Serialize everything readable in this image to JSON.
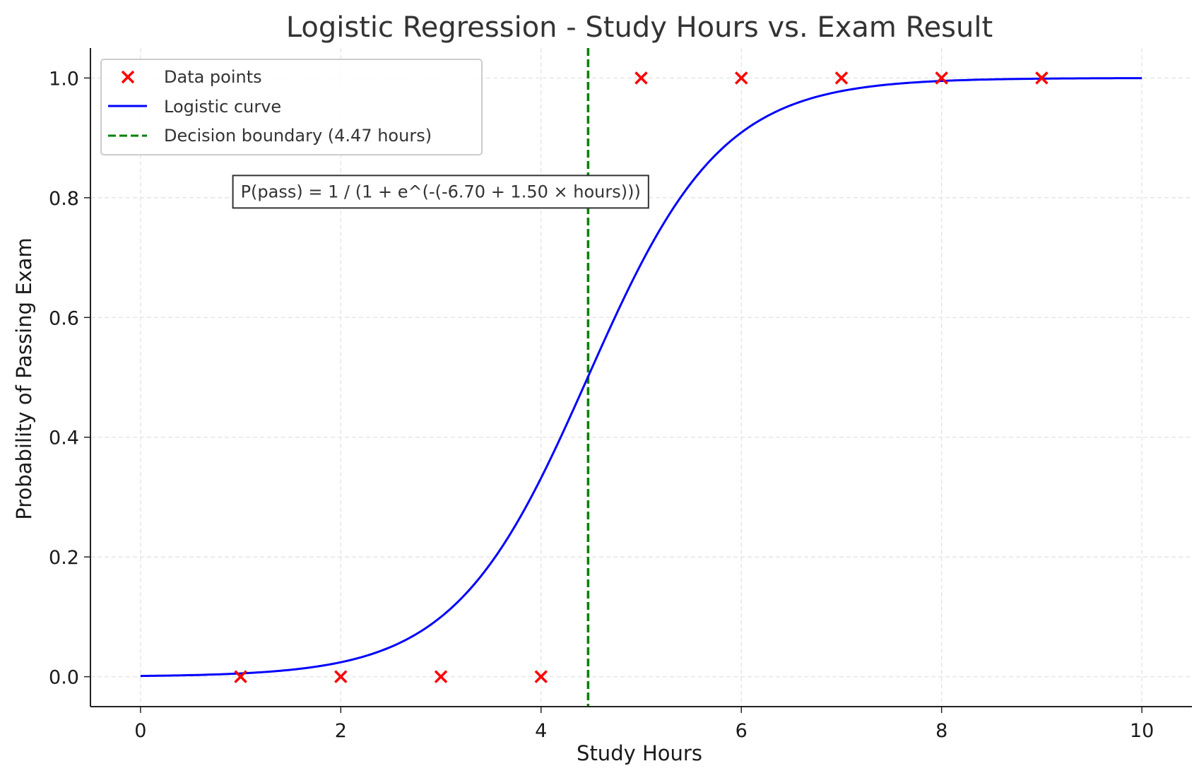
{
  "chart_data": {
    "type": "scatter",
    "title": "Logistic Regression - Study Hours vs. Exam Result",
    "xlabel": "Study Hours",
    "ylabel": "Probability of Passing Exam",
    "xlim": [
      -0.5,
      10.5
    ],
    "ylim": [
      -0.05,
      1.05
    ],
    "xticks": [
      0,
      2,
      4,
      6,
      8,
      10
    ],
    "xtick_labels": [
      "0",
      "2",
      "4",
      "6",
      "8",
      "10"
    ],
    "yticks": [
      0.0,
      0.2,
      0.4,
      0.6,
      0.8,
      1.0
    ],
    "ytick_labels": [
      "0.0",
      "0.2",
      "0.4",
      "0.6",
      "0.8",
      "1.0"
    ],
    "grid": true,
    "legend_position": "top-left",
    "series": [
      {
        "name": "Data points",
        "kind": "scatter",
        "marker": "x",
        "color": "#ff0000",
        "x": [
          1,
          2,
          3,
          4,
          5,
          6,
          7,
          8,
          9
        ],
        "y": [
          0,
          0,
          0,
          0,
          1,
          1,
          1,
          1,
          1
        ]
      },
      {
        "name": "Logistic curve",
        "kind": "line",
        "color": "#0000ff",
        "intercept": -6.7,
        "slope": 1.5,
        "x_range": [
          0,
          10
        ]
      },
      {
        "name": "Decision boundary (4.47 hours)",
        "kind": "vline",
        "color": "#008000",
        "style": "dashed",
        "x": 4.47
      }
    ],
    "annotation": {
      "text": "P(pass) = 1 / (1 + e^(-(-6.70 + 1.50 × hours)))",
      "x": 1.0,
      "y": 0.81
    }
  }
}
